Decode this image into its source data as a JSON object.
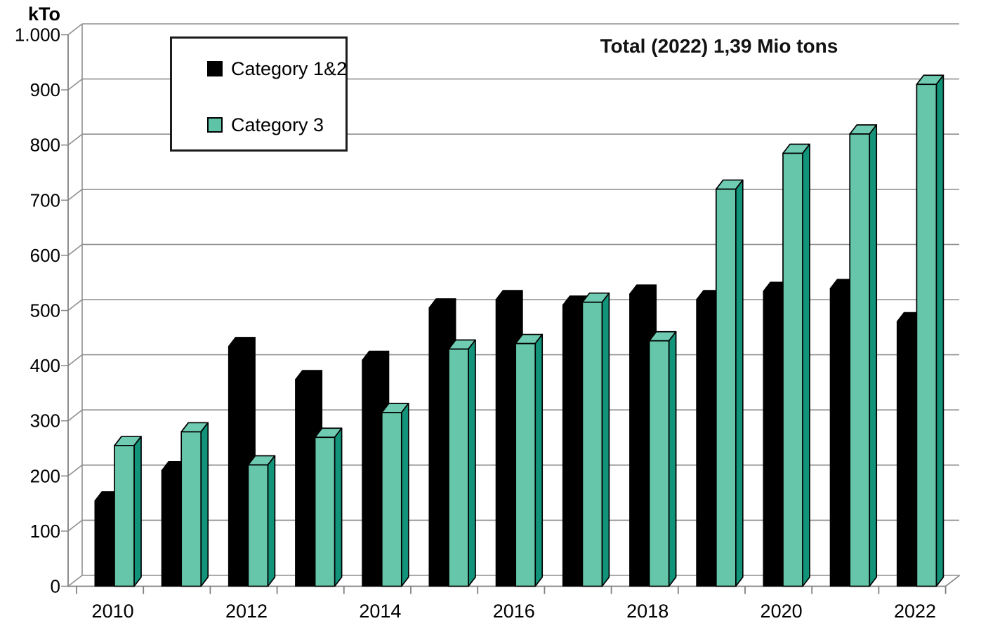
{
  "y_axis": {
    "unit_label": "kTo",
    "tick_labels": [
      "1.000",
      "900",
      "800",
      "700",
      "600",
      "500",
      "400",
      "300",
      "200",
      "100",
      "0"
    ],
    "tick_values": [
      1000,
      900,
      800,
      700,
      600,
      500,
      400,
      300,
      200,
      100,
      0
    ]
  },
  "title": {
    "text": "Total (2022) 1,39 Mio tons"
  },
  "legend": {
    "items": [
      {
        "label": "Category 1&2",
        "color": "#000000"
      },
      {
        "label": "Category 3",
        "color": "#5FC4A7"
      }
    ]
  },
  "chart_data": {
    "type": "bar",
    "style": "3d-effect-column",
    "title": "Total (2022) 1,39 Mio tons",
    "ylabel": "kTo",
    "ylim": [
      0,
      1000
    ],
    "y_tick_interval": 100,
    "grid": true,
    "legend_position": "top-left",
    "x_label_interval": 2,
    "categories": [
      "2010",
      "2011",
      "2012",
      "2013",
      "2014",
      "2015",
      "2016",
      "2017",
      "2018",
      "2019",
      "2020",
      "2021",
      "2022"
    ],
    "series": [
      {
        "name": "Category 1&2",
        "color": "#000000",
        "values": [
          155,
          210,
          435,
          375,
          410,
          505,
          520,
          510,
          530,
          520,
          535,
          540,
          480
        ]
      },
      {
        "name": "Category 3",
        "color": "#5FC4A7",
        "values": [
          255,
          280,
          220,
          270,
          315,
          430,
          440,
          515,
          445,
          720,
          785,
          820,
          910
        ]
      }
    ],
    "annotation_total_2022": "1,39 Mio tons",
    "colors": {
      "bar1_front": "#000000",
      "bar2_front": "#66C6AA",
      "bar2_top": "#6FCBB1",
      "bar2_side": "#12947B",
      "gridline": "#8F8F8F",
      "axis": "#808080",
      "text": "#000000",
      "background": "#FFFFFF"
    }
  }
}
